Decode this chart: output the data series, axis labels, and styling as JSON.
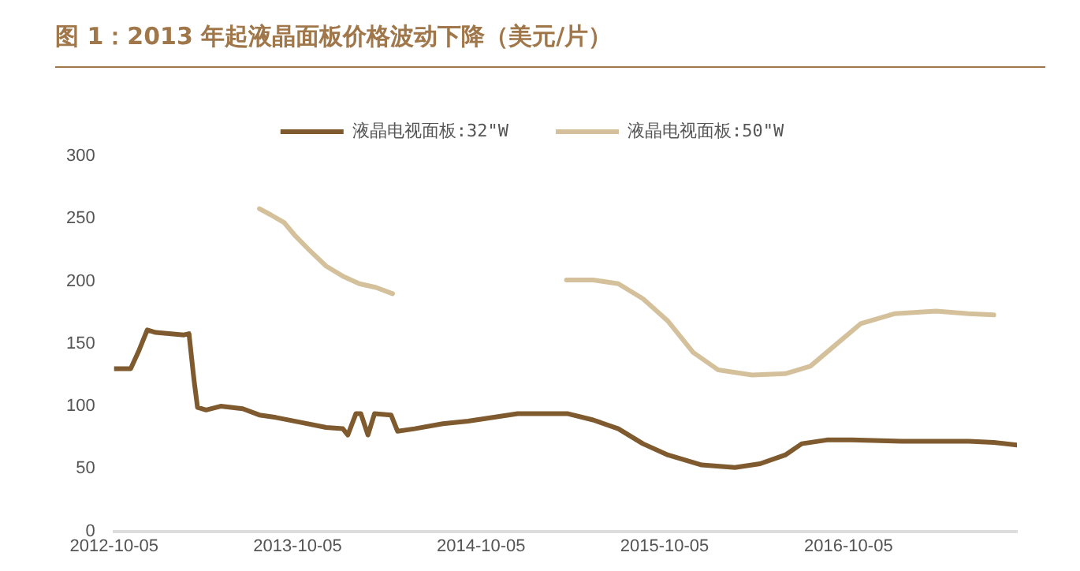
{
  "chart_data": {
    "type": "line",
    "title": "图 1：2013 年起液晶面板价格波动下降（美元/片）",
    "xlim": [
      "2012-10-05",
      "2017-09-05"
    ],
    "xticks": [
      "2012-10-05",
      "2013-10-05",
      "2014-10-05",
      "2015-10-05",
      "2016-10-05"
    ],
    "ylim": [
      0,
      300
    ],
    "yticks": [
      0,
      50,
      100,
      150,
      200,
      250,
      300
    ],
    "grid": false,
    "legend": "top",
    "marker": "none",
    "line_style": "solid",
    "series": [
      {
        "name": "液晶电视面板:32\"W",
        "color": "#7f5a2e",
        "x": [
          "2012-10-05",
          "2012-11-07",
          "2012-11-24",
          "2012-12-10",
          "2012-12-27",
          "2013-02-21",
          "2013-03-03",
          "2013-03-13",
          "2013-03-20",
          "2013-04-06",
          "2013-05-05",
          "2013-06-18",
          "2013-07-21",
          "2013-08-23",
          "2013-10-12",
          "2013-12-01",
          "2014-01-03",
          "2014-01-13",
          "2014-01-29",
          "2014-02-08",
          "2014-02-22",
          "2014-03-07",
          "2014-04-09",
          "2014-04-22",
          "2014-05-26",
          "2014-07-21",
          "2014-09-09",
          "2014-12-17",
          "2015-03-27",
          "2015-05-16",
          "2015-07-05",
          "2015-08-23",
          "2015-10-12",
          "2015-12-18",
          "2016-02-22",
          "2016-04-12",
          "2016-06-01",
          "2016-07-04",
          "2016-08-23",
          "2016-10-11",
          "2017-01-19",
          "2017-06-01",
          "2017-07-21",
          "2017-09-05"
        ],
        "values": [
          130,
          130,
          145,
          161,
          159,
          157,
          158,
          121,
          99,
          97,
          100,
          98,
          93,
          91,
          87,
          83,
          82,
          77,
          94,
          94,
          77,
          94,
          93,
          80,
          82,
          86,
          88,
          94,
          94,
          89,
          82,
          70,
          61,
          53,
          51,
          54,
          61,
          70,
          73,
          73,
          72,
          72,
          71,
          69
        ]
      },
      {
        "name": "液晶电视面板:50\"W",
        "color": "#d4c19c",
        "x": [
          "2013-07-21",
          "2013-08-13",
          "2013-09-08",
          "2013-10-01",
          "2013-10-28",
          "2013-12-01",
          "2014-01-03",
          "2014-02-05",
          "2014-03-10",
          "2014-04-12",
          "2014-10-05",
          "2015-03-24",
          "2015-05-16",
          "2015-07-05",
          "2015-08-23",
          "2015-10-12",
          "2015-12-01",
          "2016-01-20",
          "2016-03-27",
          "2016-06-01",
          "2016-07-21",
          "2016-09-09",
          "2016-10-29",
          "2017-01-04",
          "2017-03-28",
          "2017-06-01",
          "2017-07-21"
        ],
        "values": [
          258,
          253,
          247,
          236,
          225,
          212,
          204,
          198,
          195,
          190,
          null,
          201,
          201,
          198,
          186,
          168,
          143,
          129,
          125,
          126,
          132,
          149,
          166,
          174,
          176,
          174,
          173
        ]
      }
    ]
  }
}
